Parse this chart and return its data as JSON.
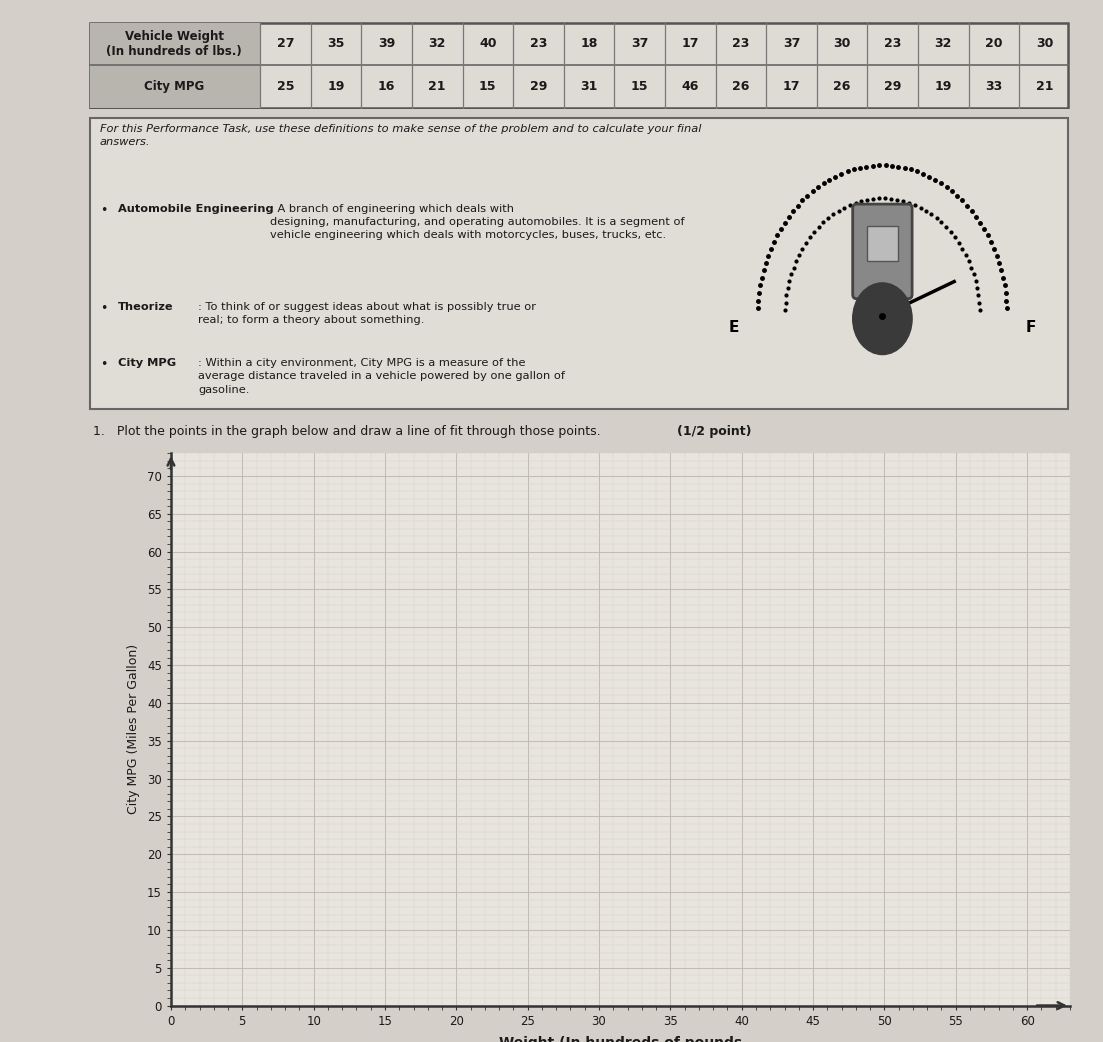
{
  "table_row1": [
    "Vehicle Weight\n(In hundreds of lbs.)",
    "27",
    "35",
    "39",
    "32",
    "40",
    "23",
    "18",
    "37",
    "17",
    "23",
    "37",
    "30",
    "23",
    "32",
    "20",
    "30"
  ],
  "table_row2": [
    "City MPG",
    "25",
    "19",
    "16",
    "21",
    "15",
    "29",
    "31",
    "15",
    "46",
    "26",
    "17",
    "26",
    "29",
    "19",
    "33",
    "21"
  ],
  "def_header": "For this Performance Task, use these definitions to make sense of the problem and to calculate your final\nanswers.",
  "bullet1_bold": "Automobile Engineering",
  "bullet1_rest": ": A branch of engineering which deals with\ndesigning, manufacturing, and operating automobiles. It is a segment of\nvehicle engineering which deals with motorcycles, buses, trucks, etc.",
  "bullet2_bold": "Theorize",
  "bullet2_rest": ": To think of or suggest ideas about what is possibly true or\nreal; to form a theory about something.",
  "bullet3_bold": "City MPG",
  "bullet3_rest": ": Within a city environment, City MPG is a measure of the\naverage distance traveled in a vehicle powered by one gallon of\ngasoline.",
  "q_text": "1.   Plot the points in the graph below and draw a line of fit through those points. ",
  "q_bold": "(1/2 point)",
  "ylabel": "City MPG (Miles Per Gallon)",
  "xlabel": "Weight (In hundreds of pounds",
  "page_bg": "#d4cfc8",
  "table_header_bg": "#b8b4ae",
  "table_data_bg": "#dedad4",
  "box_bg": "#e0dcd6",
  "graph_bg": "#e8e4de",
  "text_color": "#1a1a1a",
  "grid_major": "#c0b8b0",
  "grid_minor": "#d4cec8",
  "axis_color": "#333333"
}
